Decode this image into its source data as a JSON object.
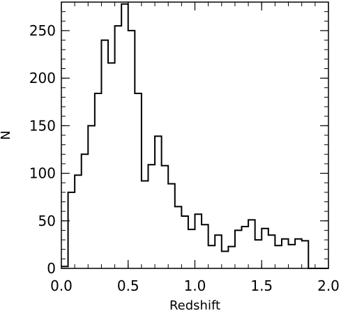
{
  "chart_data": {
    "type": "bar",
    "style": "step-histogram",
    "title": "",
    "xlabel": "Redshift",
    "ylabel": "N",
    "xlim": [
      0.0,
      2.0
    ],
    "ylim": [
      0,
      280
    ],
    "grid": false,
    "legend": "none",
    "bin_width": 0.05,
    "bin_starts": [
      0.0,
      0.05,
      0.1,
      0.15,
      0.2,
      0.25,
      0.3,
      0.35,
      0.4,
      0.45,
      0.5,
      0.55,
      0.6,
      0.65,
      0.7,
      0.75,
      0.8,
      0.85,
      0.9,
      0.95,
      1.0,
      1.05,
      1.1,
      1.15,
      1.2,
      1.25,
      1.3,
      1.35,
      1.4,
      1.45,
      1.5,
      1.55,
      1.6,
      1.65,
      1.7,
      1.75,
      1.8,
      1.85,
      1.9,
      1.95
    ],
    "values": [
      2,
      80,
      98,
      120,
      150,
      184,
      240,
      216,
      255,
      278,
      250,
      184,
      92,
      109,
      139,
      108,
      89,
      65,
      55,
      41,
      57,
      46,
      24,
      35,
      18,
      23,
      40,
      44,
      51,
      30,
      42,
      35,
      24,
      31,
      25,
      31,
      29,
      0,
      0,
      0
    ],
    "x_ticks": [
      0.0,
      0.5,
      1.0,
      1.5,
      2.0
    ],
    "x_tick_labels": [
      "0.0",
      "0.5",
      "1.0",
      "1.5",
      "2.0"
    ],
    "y_ticks": [
      0,
      50,
      100,
      150,
      200,
      250
    ],
    "y_tick_labels": [
      "0",
      "50",
      "100",
      "150",
      "200",
      "250"
    ],
    "line_color": "#000000"
  }
}
